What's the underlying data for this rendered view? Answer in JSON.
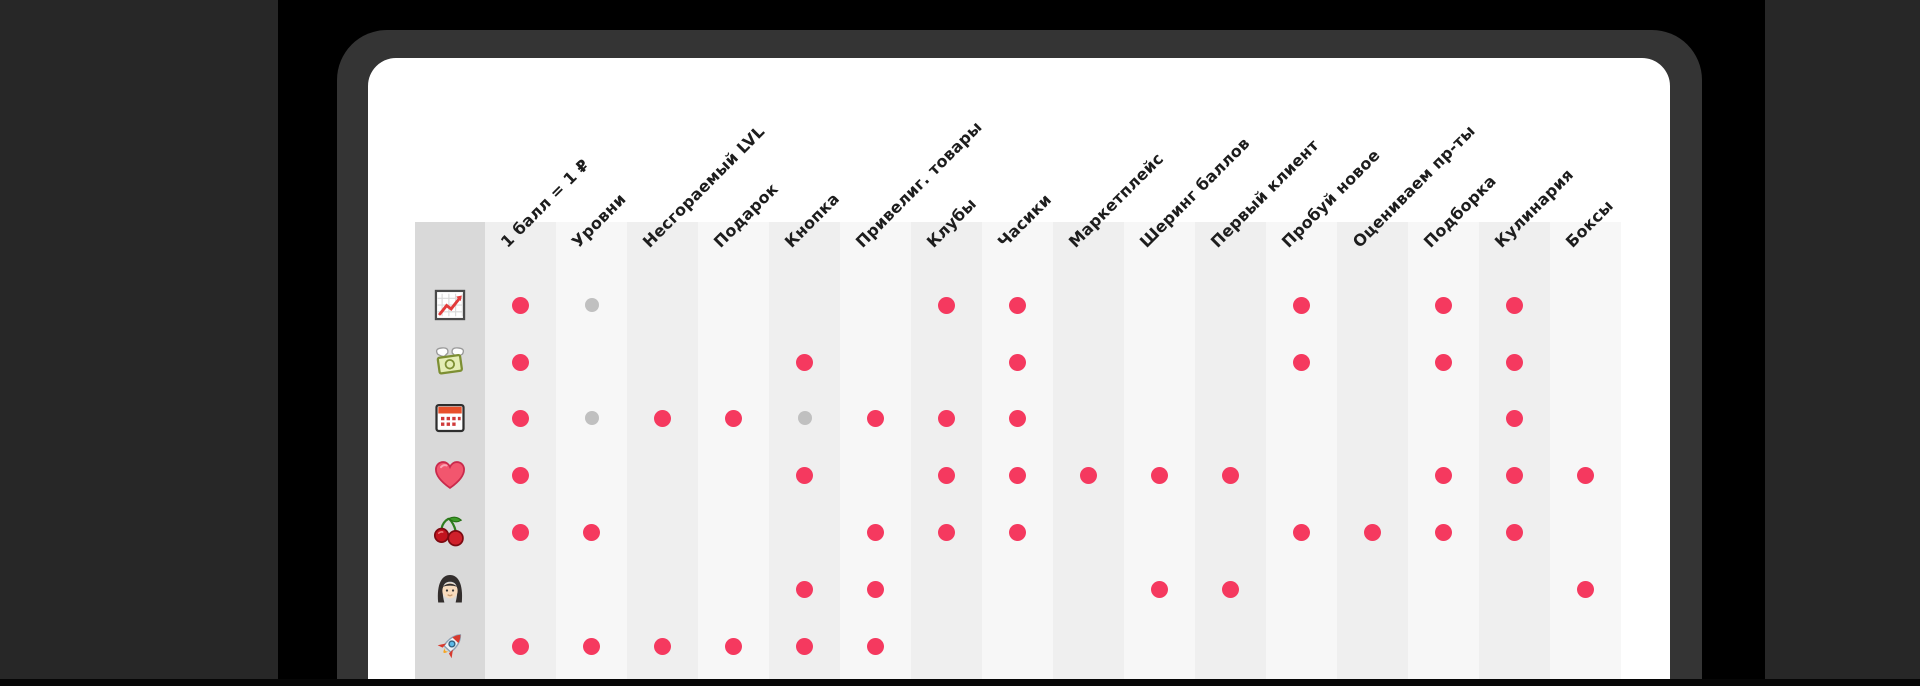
{
  "colors": {
    "background": "#000000",
    "side_panels": "#272727",
    "device_frame": "#343434",
    "screen": "#ffffff",
    "icon_column": "#d9d9d9",
    "stripe_odd": "#efefef",
    "stripe_even": "#f7f7f7",
    "dot_pink": "#f5395f",
    "dot_gray": "#c0c0c0",
    "header_text": "#1d1d1d"
  },
  "chart_data": {
    "type": "table",
    "title": "",
    "columns": [
      "1 балл = 1 ₽",
      "Уровни",
      "Несгораемый LVL",
      "Подарок",
      "Кнопка",
      "Привелиг. товары",
      "Клубы",
      "Часики",
      "Маркетплейс",
      "Шеринг баллов",
      "Первый клиент",
      "Пробуй новое",
      "Оцениваем пр-ты",
      "Подборка",
      "Кулинария",
      "Боксы"
    ],
    "dot_colors": {
      "pink": "#f5395f",
      "gray": "#c0c0c0"
    },
    "rows": [
      {
        "icon": "chart-increasing",
        "cells": [
          "pink",
          "gray",
          "",
          "",
          "",
          "",
          "pink",
          "pink",
          "",
          "",
          "",
          "pink",
          "",
          "pink",
          "pink",
          ""
        ]
      },
      {
        "icon": "money-with-wings",
        "cells": [
          "pink",
          "",
          "",
          "",
          "pink",
          "",
          "",
          "pink",
          "",
          "",
          "",
          "pink",
          "",
          "pink",
          "pink",
          ""
        ]
      },
      {
        "icon": "calendar",
        "cells": [
          "pink",
          "gray",
          "pink",
          "pink",
          "gray",
          "pink",
          "pink",
          "pink",
          "",
          "",
          "",
          "",
          "",
          "",
          "pink",
          ""
        ]
      },
      {
        "icon": "heart",
        "cells": [
          "pink",
          "",
          "",
          "",
          "pink",
          "",
          "pink",
          "pink",
          "pink",
          "pink",
          "pink",
          "",
          "",
          "pink",
          "pink",
          "pink"
        ]
      },
      {
        "icon": "cherries",
        "cells": [
          "pink",
          "pink",
          "",
          "",
          "",
          "pink",
          "pink",
          "pink",
          "",
          "",
          "",
          "pink",
          "pink",
          "pink",
          "pink",
          ""
        ]
      },
      {
        "icon": "woman",
        "cells": [
          "",
          "",
          "",
          "",
          "pink",
          "pink",
          "",
          "",
          "",
          "pink",
          "pink",
          "",
          "",
          "",
          "",
          "pink"
        ]
      },
      {
        "icon": "rocket",
        "cells": [
          "pink",
          "pink",
          "pink",
          "pink",
          "pink",
          "pink",
          "",
          "",
          "",
          "",
          "",
          "",
          "",
          "",
          "",
          ""
        ]
      }
    ]
  }
}
